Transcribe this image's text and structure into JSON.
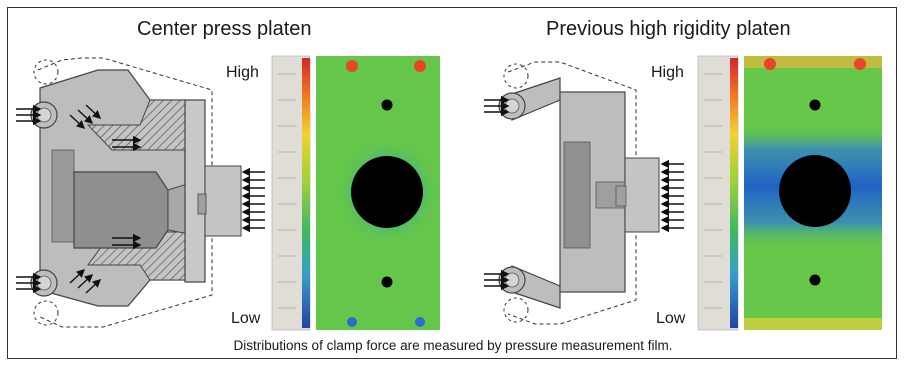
{
  "left_panel": {
    "title": "Center press platen",
    "scale_high": "High",
    "scale_low": "Low"
  },
  "right_panel": {
    "title": "Previous high rigidity platen",
    "scale_high": "High",
    "scale_low": "Low"
  },
  "caption": "Distributions of clamp force are measured by pressure measurement film.",
  "colors": {
    "frame_border": "#333333",
    "platen_gray": "#bdbdbd",
    "platen_dark": "#8f8f8f",
    "film_green": "#56c24a",
    "film_blue": "#2a6ed0",
    "hole_black": "#000000"
  }
}
